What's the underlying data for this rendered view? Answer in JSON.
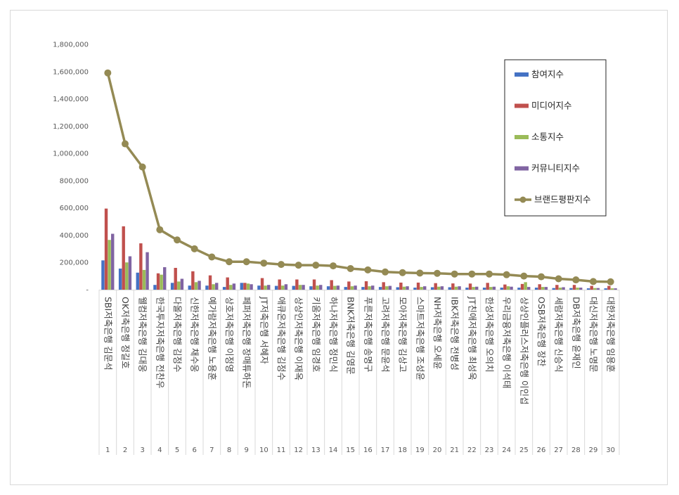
{
  "chart_data": {
    "type": "bar",
    "title": "",
    "xlabel": "",
    "ylabel": "",
    "ylim": [
      0,
      1800000
    ],
    "yticks": [
      "1,800,000",
      "1,600,000",
      "1,400,000",
      "1,200,000",
      "1,000,000",
      "800,000",
      "600,000",
      "400,000",
      "200,000",
      "-"
    ],
    "grid": false,
    "legend_position": "top-right",
    "ranks": [
      "1",
      "2",
      "3",
      "4",
      "5",
      "6",
      "7",
      "8",
      "9",
      "10",
      "11",
      "12",
      "13",
      "14",
      "15",
      "16",
      "17",
      "18",
      "19",
      "20",
      "21",
      "22",
      "23",
      "24",
      "25",
      "26",
      "27",
      "28",
      "29",
      "30"
    ],
    "categories": [
      "SBI저축은행 김문석",
      "OK저축은행 정길호",
      "웰컴저축은행 김대웅",
      "한국투자저축은행 전찬우",
      "다올저축은행 김정수",
      "신한저축은행 채수웅",
      "예가람저축은행 노용훈",
      "상호저축은행 이정영",
      "페퍼저축은행 장매튜하돈",
      "JT저축은행 서혜자",
      "애큐온저축은행 김정수",
      "상상인저축은행 이재옥",
      "키움저축은행 임경호",
      "하나저축은행 정민식",
      "BNK저축은행 김영문",
      "푸른저축은행 송명구",
      "고려저축은행 문윤석",
      "모아저축은행 김상고",
      "스마트저축은행 조성윤",
      "NH저축은행 오세윤",
      "IBK저축은행 전병성",
      "JT친애저축은행 최성욱",
      "한성저축은행 오의치",
      "우리금융저축은행 이석태",
      "상상인플러스저축은행 이인섭",
      "OSB저축은행 장찬",
      "세람저축은행 신승식",
      "DB저축은행 윤재인",
      "대신저축은행 노명문",
      "대한저축은행 임용훈"
    ],
    "series": [
      {
        "name": "참여지수",
        "type": "bar",
        "color": "#4472c4",
        "values": [
          215000,
          155000,
          125000,
          35000,
          50000,
          30000,
          30000,
          20000,
          50000,
          30000,
          28000,
          28000,
          25000,
          25000,
          20000,
          20000,
          20000,
          18000,
          15000,
          18000,
          18000,
          15000,
          15000,
          15000,
          15000,
          15000,
          12000,
          12000,
          10000,
          10000
        ]
      },
      {
        "name": "미디어지수",
        "type": "bar",
        "color": "#c0504d",
        "values": [
          595000,
          465000,
          340000,
          120000,
          160000,
          135000,
          105000,
          90000,
          50000,
          85000,
          75000,
          75000,
          75000,
          70000,
          60000,
          62000,
          55000,
          52000,
          52000,
          48000,
          46000,
          45000,
          50000,
          38000,
          42000,
          40000,
          35000,
          35000,
          28000,
          28000
        ]
      },
      {
        "name": "소통지수",
        "type": "bar",
        "color": "#9bbb59",
        "values": [
          365000,
          200000,
          145000,
          110000,
          60000,
          55000,
          40000,
          35000,
          45000,
          30000,
          30000,
          35000,
          30000,
          28000,
          25000,
          25000,
          25000,
          22000,
          20000,
          22000,
          22000,
          20000,
          20000,
          25000,
          55000,
          20000,
          15000,
          15000,
          12000,
          10000
        ]
      },
      {
        "name": "커뮤니티지수",
        "type": "bar",
        "color": "#8064a2",
        "values": [
          410000,
          245000,
          275000,
          165000,
          80000,
          65000,
          50000,
          45000,
          40000,
          35000,
          40000,
          35000,
          35000,
          30000,
          30000,
          30000,
          28000,
          25000,
          25000,
          25000,
          25000,
          22000,
          22000,
          22000,
          20000,
          20000,
          18000,
          15000,
          12000,
          10000
        ]
      },
      {
        "name": "브랜드평판지수",
        "type": "line",
        "color": "#948a54",
        "values": [
          1590000,
          1070000,
          900000,
          440000,
          365000,
          300000,
          240000,
          205000,
          205000,
          195000,
          185000,
          180000,
          180000,
          175000,
          155000,
          145000,
          130000,
          125000,
          122000,
          120000,
          115000,
          115000,
          115000,
          110000,
          100000,
          95000,
          80000,
          72000,
          60000,
          58000
        ]
      }
    ]
  }
}
